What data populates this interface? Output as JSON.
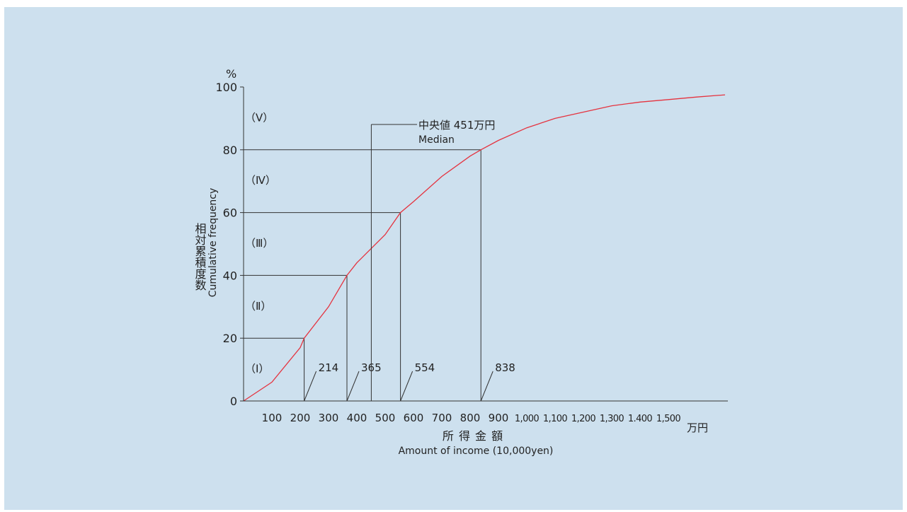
{
  "colors": {
    "background": "#cde0ee",
    "axis": "#333333",
    "guide": "#333333",
    "curve": "#e5333f"
  },
  "chart_data": {
    "type": "line",
    "ylabel_ja": "相対累積度数",
    "ylabel_en": "Cumulative frequency",
    "y_unit": "%",
    "xlabel_ja": "所 得 金 額",
    "xlabel_en": "Amount of income (10,000yen)",
    "x_unit": "万円",
    "ylim": [
      0,
      100
    ],
    "yticks": [
      {
        "value": 0,
        "label": "0"
      },
      {
        "value": 20,
        "label": "20"
      },
      {
        "value": 40,
        "label": "40"
      },
      {
        "value": 60,
        "label": "60"
      },
      {
        "value": 80,
        "label": "80"
      },
      {
        "value": 100,
        "label": "100"
      }
    ],
    "xticks": [
      {
        "value": 100,
        "label": "100"
      },
      {
        "value": 200,
        "label": "200"
      },
      {
        "value": 300,
        "label": "300"
      },
      {
        "value": 400,
        "label": "400"
      },
      {
        "value": 500,
        "label": "500"
      },
      {
        "value": 600,
        "label": "600"
      },
      {
        "value": 700,
        "label": "700"
      },
      {
        "value": 800,
        "label": "800"
      },
      {
        "value": 900,
        "label": "900"
      },
      {
        "value": 1000,
        "label": "1,000"
      },
      {
        "value": 1100,
        "label": "1,100"
      },
      {
        "value": 1200,
        "label": "1,200"
      },
      {
        "value": 1300,
        "label": "1,300"
      },
      {
        "value": 1400,
        "label": "1.400"
      },
      {
        "value": 1500,
        "label": "1,500"
      }
    ],
    "series": [
      {
        "x": [
          0,
          100,
          200,
          214,
          300,
          365,
          400,
          500,
          554,
          600,
          700,
          800,
          838,
          900,
          1000,
          1100,
          1200,
          1300,
          1400,
          1500,
          1600,
          1700
        ],
        "y": [
          0,
          6,
          17,
          20,
          30,
          40,
          44,
          53,
          60,
          63.5,
          71.5,
          78,
          80,
          83,
          87,
          90,
          92,
          94,
          95.2,
          96,
          96.8,
          97.5
        ]
      }
    ],
    "quintile_boundaries": [
      {
        "income": 214,
        "percent": 20,
        "label": "214"
      },
      {
        "income": 365,
        "percent": 40,
        "label": "365"
      },
      {
        "income": 554,
        "percent": 60,
        "label": "554"
      },
      {
        "income": 838,
        "percent": 80,
        "label": "838"
      }
    ],
    "quintile_labels": [
      {
        "label": "（Ⅰ）",
        "center_percent": 10
      },
      {
        "label": "（Ⅱ）",
        "center_percent": 30
      },
      {
        "label": "（Ⅲ）",
        "center_percent": 50
      },
      {
        "label": "（Ⅳ）",
        "center_percent": 70
      },
      {
        "label": "（Ⅴ）",
        "center_percent": 90
      }
    ],
    "median": {
      "value": 451,
      "label_ja": "中央値 451万円",
      "label_en": "Median"
    }
  }
}
